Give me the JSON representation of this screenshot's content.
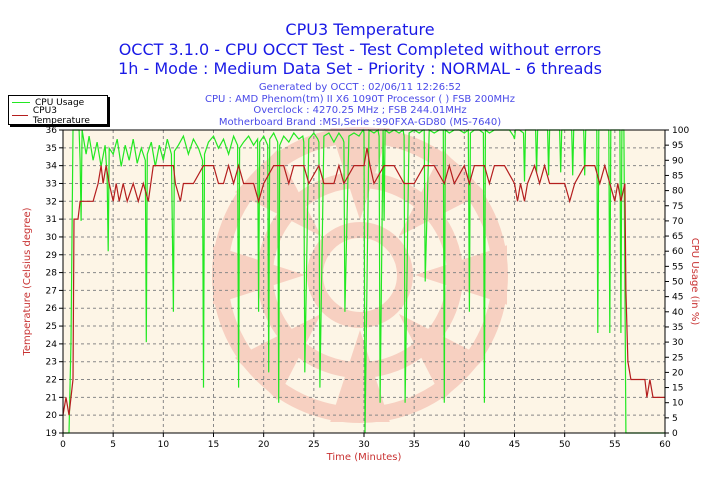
{
  "header": {
    "title": "CPU3 Temperature",
    "subtitle1": "OCCT 3.1.0 - CPU OCCT Test - Test Completed without errors",
    "subtitle2": "1h - Mode : Medium Data Set - Priority : NORMAL - 6 threads",
    "info": [
      "Generated by OCCT : 02/06/11 12:26:52",
      "CPU : AMD Phenom(tm) II X6 1090T Processor (  ) FSB 200MHz",
      "Overclock : 4270.25 MHz ; FSB 244.01MHz",
      "Motherboard Brand :MSI,Serie :990FXA-GD80 (MS-7640)"
    ]
  },
  "chart_data": {
    "type": "line",
    "title": "CPU3 Temperature",
    "xlabel": "Time (Minutes)",
    "ylabel": "Temperature (Celsius degree)",
    "y2label": "CPU Usage (in %)",
    "xlim": [
      0,
      60
    ],
    "ylim": [
      19,
      36
    ],
    "y2lim": [
      0,
      100
    ],
    "xticks": [
      0,
      5,
      10,
      15,
      20,
      25,
      30,
      35,
      40,
      45,
      50,
      55,
      60
    ],
    "yticks": [
      19,
      20,
      21,
      22,
      23,
      24,
      25,
      26,
      27,
      28,
      29,
      30,
      31,
      32,
      33,
      34,
      35,
      36
    ],
    "y2ticks": [
      0,
      5,
      10,
      15,
      20,
      25,
      30,
      35,
      40,
      45,
      50,
      55,
      60,
      65,
      70,
      75,
      80,
      85,
      90,
      95,
      100
    ],
    "grid": true,
    "legend_position": "top-left",
    "background": "#fdf5e6",
    "series": [
      {
        "name": "CPU Usage",
        "color": "#22e822",
        "axis": "right",
        "x": [
          0,
          0.6,
          0.8,
          1,
          1.6,
          1.7,
          1.8,
          1.9,
          2.3,
          2.6,
          3,
          3.4,
          3.8,
          4.2,
          4.4,
          4.5,
          4.6,
          5,
          5.4,
          5.8,
          6.2,
          6.6,
          7,
          7.4,
          7.8,
          8.2,
          8.3,
          8.4,
          8.8,
          9.2,
          9.6,
          10,
          10.4,
          10.8,
          11,
          11.1,
          11.5,
          12,
          12.5,
          13,
          13.5,
          13.9,
          14,
          14.1,
          14.5,
          15,
          15.5,
          16,
          16.5,
          17,
          17.4,
          17.5,
          17.6,
          18,
          18.5,
          19,
          19.4,
          19.5,
          19.6,
          20,
          20.4,
          20.5,
          20.6,
          21,
          21.4,
          21.5,
          21.6,
          22,
          22.5,
          23,
          23.5,
          23.9,
          24,
          24.1,
          24.5,
          25,
          25.4,
          25.5,
          25.6,
          26,
          26.5,
          27,
          27.5,
          27.9,
          28,
          28.1,
          28.5,
          29,
          29.5,
          29.9,
          30,
          30.1,
          30.5,
          31,
          31.4,
          31.5,
          31.6,
          31.9,
          32,
          32.1,
          32.5,
          33,
          33.5,
          33.9,
          34,
          34.1,
          34.5,
          35,
          35.5,
          35.9,
          36,
          36.1,
          36.5,
          37,
          37.5,
          37.9,
          38,
          38.1,
          38.5,
          39,
          39.5,
          40,
          40.4,
          40.5,
          40.6,
          41,
          41.5,
          41.9,
          42,
          42.1,
          42.5,
          43,
          43.5,
          44,
          44.5,
          44.9,
          45,
          45.1,
          45.5,
          45.9,
          46,
          46.1,
          46.5,
          47.1,
          47.2,
          47.3,
          47.8,
          48.3,
          48.4,
          48.5,
          49,
          49.5,
          49.6,
          49.7,
          50.2,
          50.7,
          50.8,
          50.9,
          51.5,
          51.9,
          52,
          52.1,
          52.7,
          53.2,
          53.3,
          53.4,
          54,
          54.4,
          54.5,
          54.6,
          55,
          55.5,
          55.6,
          55.7,
          55.9,
          56.1,
          56.2,
          60
        ],
        "y": [
          0,
          0,
          30,
          100,
          100,
          90,
          70,
          100,
          92,
          98,
          90,
          96,
          88,
          95,
          85,
          60,
          94,
          92,
          97,
          88,
          95,
          90,
          97,
          89,
          94,
          90,
          30,
          92,
          96,
          88,
          95,
          90,
          97,
          92,
          40,
          93,
          95,
          98,
          92,
          97,
          94,
          90,
          15,
          92,
          96,
          98,
          94,
          97,
          92,
          98,
          95,
          15,
          94,
          96,
          98,
          95,
          97,
          40,
          96,
          98,
          95,
          20,
          97,
          99,
          96,
          10,
          95,
          98,
          96,
          99,
          97,
          98,
          96,
          20,
          97,
          99,
          97,
          96,
          15,
          98,
          99,
          96,
          99,
          97,
          96,
          40,
          98,
          99,
          98,
          100,
          99,
          0,
          100,
          99,
          100,
          98,
          10,
          100,
          70,
          100,
          99,
          100,
          99,
          100,
          98,
          10,
          99,
          100,
          99,
          100,
          100,
          50,
          100,
          99,
          100,
          100,
          10,
          100,
          99,
          100,
          100,
          99,
          100,
          40,
          99,
          100,
          100,
          99,
          10,
          100,
          99,
          100,
          100,
          100,
          100,
          98,
          97,
          100,
          100,
          99,
          83,
          100,
          100,
          100,
          86,
          100,
          100,
          100,
          85,
          100,
          100,
          100,
          86,
          100,
          100,
          100,
          85,
          100,
          100,
          100,
          85,
          100,
          100,
          100,
          33,
          100,
          100,
          100,
          33,
          100,
          100,
          100,
          33,
          100,
          100,
          0,
          0,
          0
        ]
      },
      {
        "name": "CPU3 Temperature",
        "color": "#b41e1e",
        "axis": "left",
        "x": [
          0,
          0.3,
          0.6,
          1,
          1.1,
          1.5,
          1.7,
          3,
          3.5,
          3.8,
          4,
          4.3,
          4.6,
          5,
          5.3,
          5.6,
          6,
          6.4,
          7,
          7.5,
          8,
          8.5,
          9,
          10,
          11,
          11.2,
          11.7,
          12,
          13,
          14,
          15,
          15.5,
          16,
          16.5,
          17,
          17.5,
          18,
          19,
          19.5,
          20,
          21,
          22,
          22.5,
          23,
          24,
          24.5,
          25.5,
          26,
          27,
          27.5,
          28,
          29,
          30,
          30.3,
          30.6,
          31,
          32,
          33,
          34,
          35,
          36,
          37,
          38,
          38.5,
          39,
          40,
          40.5,
          41,
          42,
          42.5,
          43,
          44,
          45,
          45.3,
          45.6,
          46,
          46.3,
          47,
          47.5,
          48,
          48.5,
          49,
          50,
          50.5,
          51,
          52,
          53,
          53.5,
          54,
          54.5,
          55,
          55.3,
          55.6,
          56,
          56.1,
          56.3,
          56.6,
          57,
          58,
          58.2,
          58.5,
          58.8,
          59,
          60
        ],
        "y": [
          20,
          21,
          20,
          22,
          31,
          31,
          32,
          32,
          33,
          34,
          33,
          34,
          33,
          32,
          33,
          32,
          33,
          32,
          33,
          32,
          33,
          32,
          34,
          34,
          34,
          33,
          32,
          33,
          33,
          34,
          34,
          33,
          33,
          34,
          33,
          34,
          33,
          33,
          32,
          33,
          34,
          34,
          33,
          34,
          34,
          33,
          34,
          33,
          33,
          34,
          33,
          34,
          34,
          35,
          34,
          33,
          34,
          34,
          33,
          33,
          34,
          34,
          33,
          34,
          33,
          34,
          33,
          34,
          34,
          33,
          34,
          34,
          33,
          32,
          33,
          32,
          33,
          34,
          33,
          34,
          33,
          33,
          33,
          32,
          33,
          34,
          34,
          33,
          34,
          33,
          32,
          33,
          32,
          33,
          27,
          23,
          22,
          22,
          22,
          21,
          22,
          21,
          21,
          21
        ]
      }
    ]
  }
}
